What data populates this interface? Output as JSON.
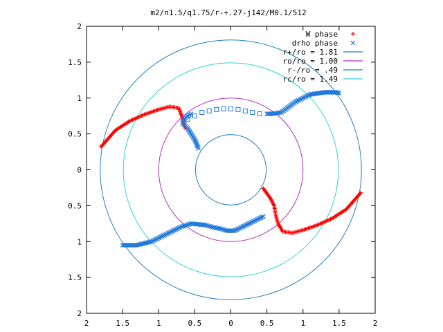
{
  "chart_data": {
    "type": "scatter",
    "title": "m2/n1.5/q1.75/r-+.27-j142/M0.1/512",
    "xlabel": "",
    "ylabel": "",
    "xlim": [
      -2,
      2
    ],
    "ylim": [
      -2,
      2
    ],
    "x_ticks": [
      "2",
      "1.5",
      "1",
      "0.5",
      "0",
      "0.5",
      "1",
      "1.5",
      "2"
    ],
    "y_ticks": [
      "2",
      "1.5",
      "1",
      "0.5",
      "0",
      "0.5",
      "1",
      "1.5",
      "2"
    ],
    "grid": false,
    "legend_position": "top-right",
    "circles": [
      {
        "label": "r+/ro = 1.81",
        "radius": 1.81,
        "color": "#1f7fbf"
      },
      {
        "label": "ro/ro = 1.00",
        "radius": 1.0,
        "color": "#b52cbf"
      },
      {
        "label": "r-/ro = .49",
        "radius": 0.49,
        "color": "#1f7fbf"
      },
      {
        "label": "rc/ro = 1.49",
        "radius": 1.49,
        "color": "#2ed3d3"
      }
    ],
    "series": [
      {
        "name": "W phase",
        "marker": "plus",
        "color": "#ff0000",
        "branches": [
          {
            "x": [
              -1.8,
              -1.6,
              -1.4,
              -1.2,
              -1.0,
              -0.85,
              -0.72,
              -0.67,
              -0.64,
              -0.63
            ],
            "y": [
              0.32,
              0.55,
              0.68,
              0.77,
              0.84,
              0.88,
              0.86,
              0.72,
              0.6,
              0.58
            ]
          },
          {
            "x": [
              1.8,
              1.6,
              1.4,
              1.2,
              1.0,
              0.85,
              0.72,
              0.65,
              0.62,
              0.6,
              0.55,
              0.45
            ],
            "y": [
              -0.32,
              -0.55,
              -0.68,
              -0.77,
              -0.84,
              -0.88,
              -0.86,
              -0.74,
              -0.62,
              -0.5,
              -0.4,
              -0.26
            ]
          }
        ]
      },
      {
        "name": "drho phase",
        "marker": "cross",
        "color": "#1e78d8",
        "branches": [
          {
            "x": [
              -1.5,
              -1.3,
              -1.1,
              -0.9,
              -0.7,
              -0.55,
              -0.45,
              -0.35,
              -0.25,
              -0.15,
              -0.05,
              0.05,
              0.15,
              0.25,
              0.35,
              0.45
            ],
            "y": [
              -1.05,
              -1.05,
              -1.0,
              -0.9,
              -0.8,
              -0.75,
              -0.76,
              -0.77,
              -0.8,
              -0.82,
              -0.85,
              -0.85,
              -0.8,
              -0.75,
              -0.7,
              -0.65
            ]
          },
          {
            "x": [
              -0.45,
              -0.5,
              -0.6,
              -0.67,
              -0.63,
              -0.55
            ],
            "y": [
              0.3,
              0.42,
              0.58,
              0.65,
              0.73,
              0.78
            ]
          },
          {
            "x": [
              0.5,
              0.58,
              0.7,
              0.9,
              1.1,
              1.3,
              1.45,
              1.5
            ],
            "y": [
              0.78,
              0.78,
              0.8,
              0.95,
              1.05,
              1.08,
              1.08,
              1.07
            ]
          }
        ]
      },
      {
        "name": "drho phase (square markers)",
        "marker": "square",
        "color": "#1e78d8",
        "branches": [
          {
            "x": [
              -0.6,
              -0.5,
              -0.4,
              -0.3,
              -0.2,
              -0.1,
              0.0,
              0.1,
              0.2,
              0.3,
              0.4
            ],
            "y": [
              0.7,
              0.75,
              0.8,
              0.82,
              0.84,
              0.85,
              0.85,
              0.84,
              0.82,
              0.8,
              0.78
            ]
          }
        ]
      }
    ]
  }
}
